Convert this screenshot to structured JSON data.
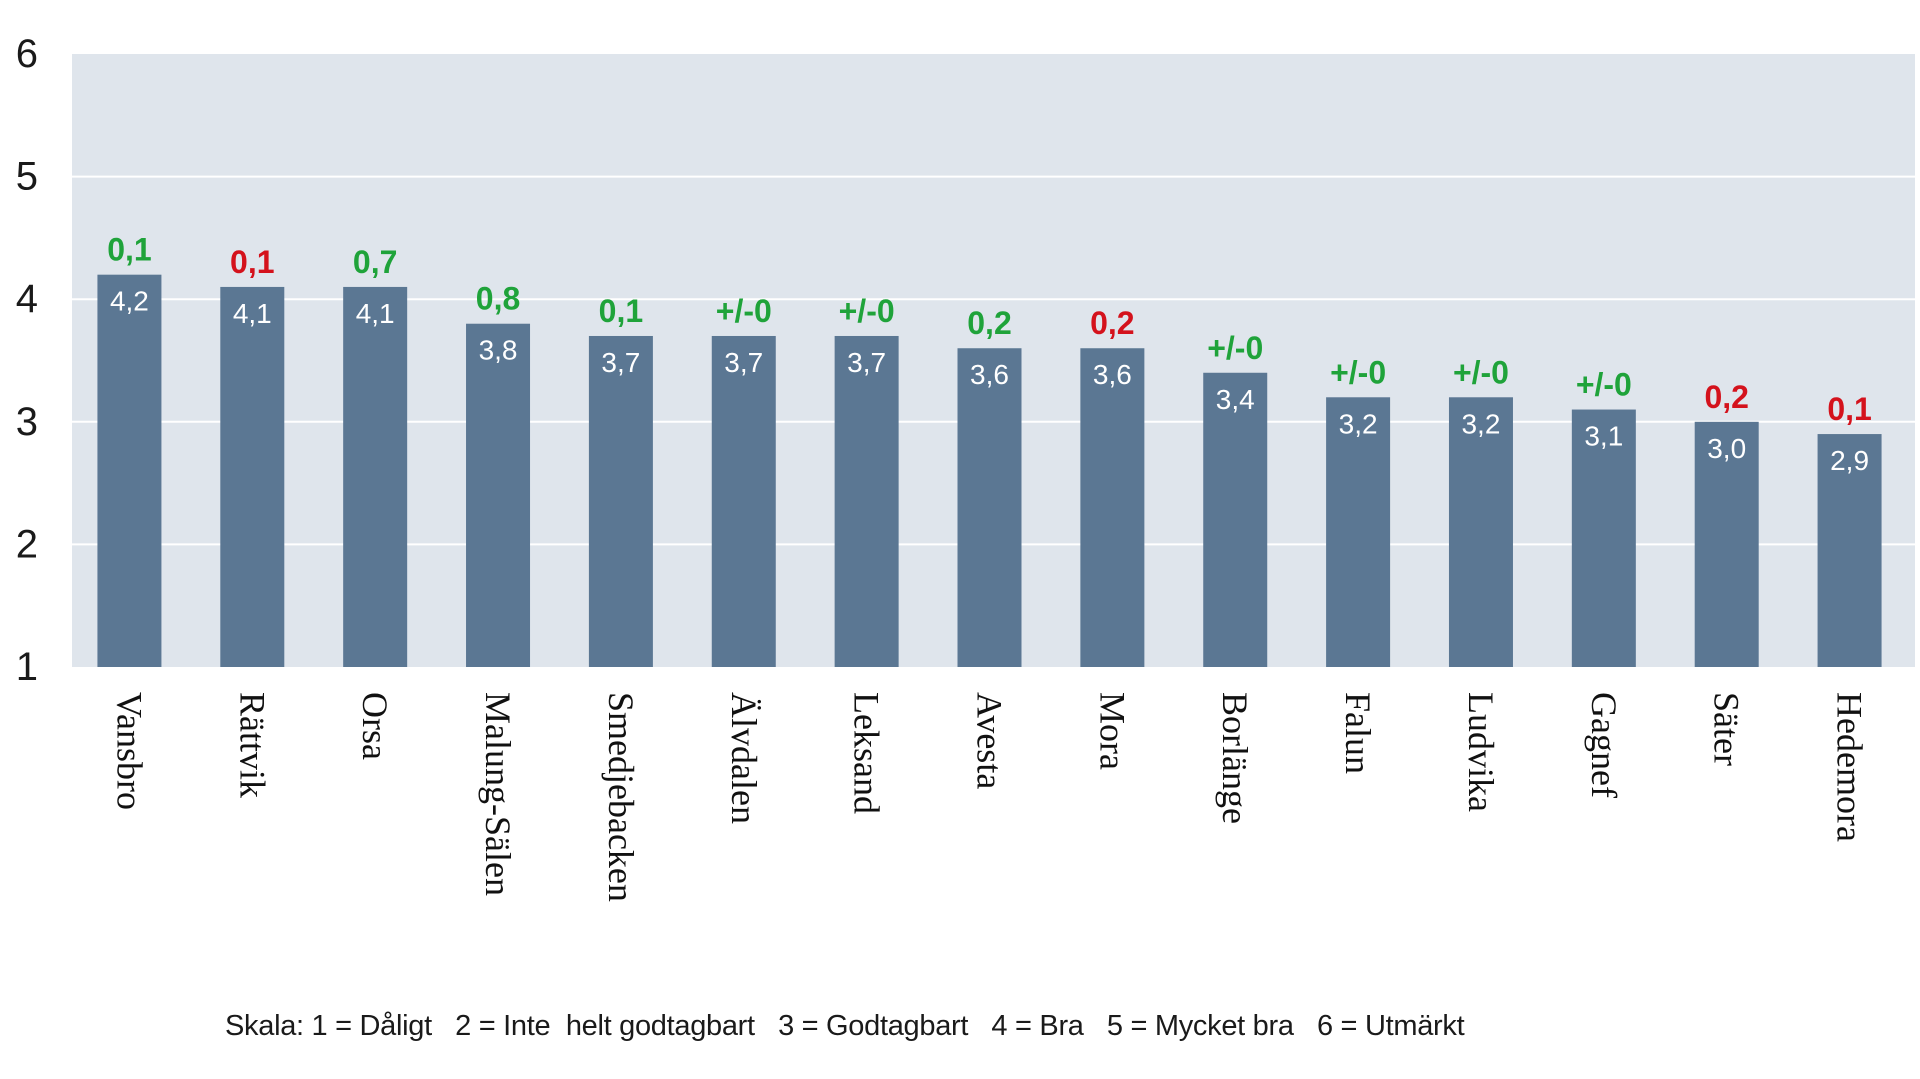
{
  "chart_data": {
    "type": "bar",
    "categories": [
      "Vansbro",
      "Rättvik",
      "Orsa",
      "Malung-Sälen",
      "Smedjebacken",
      "Älvdalen",
      "Leksand",
      "Avesta",
      "Mora",
      "Borlänge",
      "Falun",
      "Ludvika",
      "Gagnef",
      "Säter",
      "Hedemora"
    ],
    "values": [
      4.2,
      4.1,
      4.1,
      3.8,
      3.7,
      3.7,
      3.7,
      3.6,
      3.6,
      3.4,
      3.2,
      3.2,
      3.1,
      3.0,
      2.9
    ],
    "value_labels": [
      "4,2",
      "4,1",
      "4,1",
      "3,8",
      "3,7",
      "3,7",
      "3,7",
      "3,6",
      "3,6",
      "3,4",
      "3,2",
      "3,2",
      "3,1",
      "3,0",
      "2,9"
    ],
    "change_labels": [
      "0,1",
      "0,1",
      "0,7",
      "0,8",
      "0,1",
      "+/-0",
      "+/-0",
      "0,2",
      "0,2",
      "+/-0",
      "+/-0",
      "+/-0",
      "+/-0",
      "0,2",
      "0,1"
    ],
    "change_directions": [
      "up",
      "down",
      "up",
      "up",
      "up",
      "none",
      "none",
      "up",
      "down",
      "none",
      "none",
      "none",
      "none",
      "down",
      "down"
    ],
    "ylim": [
      1,
      6
    ],
    "yticks": [
      1,
      2,
      3,
      4,
      5,
      6
    ],
    "ytick_labels": [
      "1",
      "2",
      "3",
      "4",
      "5",
      "6"
    ],
    "grid": true,
    "title": "",
    "xlabel": "",
    "ylabel": ""
  },
  "footer": {
    "scale_note": "Skala: 1 = Dåligt   2 = Inte  helt godtagbart   3 = Godtagbart   4 = Bra   5 = Mycket bra   6 = Utmärkt"
  },
  "colors": {
    "plot_background": "#dfe5ec",
    "bar": "#5b7793",
    "gridline": "#ffffff",
    "positive_change": "#1fa33a",
    "negative_change": "#d4121c",
    "neutral_change": "#1fa33a"
  }
}
